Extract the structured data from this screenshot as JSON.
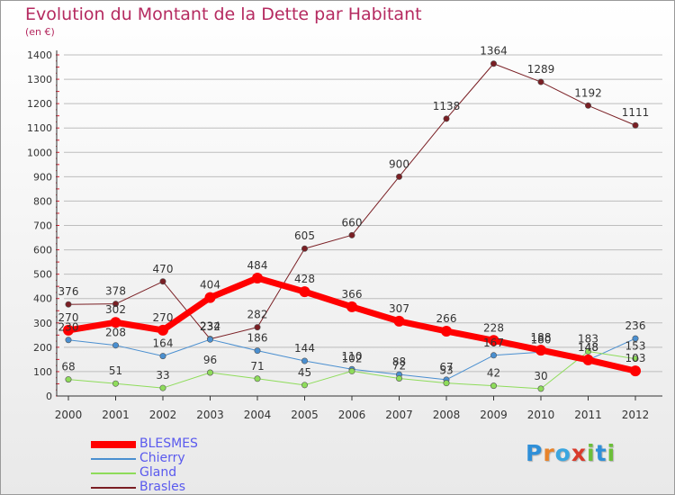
{
  "header": {
    "title": "Evolution du Montant de la Dette par Habitant",
    "subtitle": "(en €)"
  },
  "logo": {
    "text": "Proxiti",
    "colors": [
      "#2f8fd8",
      "#e8832a",
      "#3aa6e0",
      "#d93a2b",
      "#6cbf3a",
      "#2f8fd8",
      "#6cbf3a"
    ]
  },
  "chart_data": {
    "type": "line",
    "x": [
      "2000",
      "2001",
      "2002",
      "2003",
      "2004",
      "2005",
      "2006",
      "2007",
      "2008",
      "2009",
      "2010",
      "2011",
      "2012"
    ],
    "ylim": [
      0,
      1400
    ],
    "yticks": [
      0,
      100,
      200,
      300,
      400,
      500,
      600,
      700,
      800,
      900,
      1000,
      1100,
      1200,
      1300,
      1400
    ],
    "grid": "horizontal",
    "legend_position": "bottom-left",
    "series": [
      {
        "name": "Brasles",
        "color": "#7a1f24",
        "width": 1,
        "values": [
          376,
          378,
          470,
          234,
          282,
          605,
          660,
          900,
          1138,
          1364,
          1289,
          1192,
          1111
        ],
        "labels": [
          "376",
          "378",
          "470",
          "234",
          "282",
          "605",
          "660",
          "900",
          "1138",
          "1364",
          "1289",
          "1192",
          "1111"
        ]
      },
      {
        "name": "Chierry",
        "color": "#4a8fd0",
        "width": 1,
        "values": [
          230,
          208,
          164,
          232,
          186,
          144,
          110,
          88,
          67,
          167,
          180,
          148,
          236
        ],
        "labels": [
          "230",
          "208",
          "164",
          "232",
          "186",
          "144",
          "110",
          "88",
          "67",
          "167",
          "180",
          "148",
          "236"
        ]
      },
      {
        "name": "Gland",
        "color": "#8edc5a",
        "width": 1,
        "values": [
          68,
          51,
          33,
          96,
          71,
          45,
          102,
          72,
          53,
          42,
          30,
          183,
          153
        ],
        "labels": [
          "68",
          "51",
          "33",
          "96",
          "71",
          "45",
          "102",
          "72",
          "53",
          "42",
          "30",
          "183",
          "153"
        ]
      },
      {
        "name": "BLESMES",
        "color": "#ff0000",
        "width": 7,
        "values": [
          270,
          302,
          270,
          404,
          484,
          428,
          366,
          307,
          266,
          228,
          188,
          148,
          103
        ],
        "labels": [
          "270",
          "302",
          "270",
          "404",
          "484",
          "428",
          "366",
          "307",
          "266",
          "228",
          "188",
          "148",
          "103"
        ]
      }
    ],
    "legend": [
      {
        "name": "BLESMES",
        "color": "#ff0000",
        "width": 7
      },
      {
        "name": "Chierry",
        "color": "#4a8fd0",
        "width": 1
      },
      {
        "name": "Gland",
        "color": "#8edc5a",
        "width": 1
      },
      {
        "name": "Brasles",
        "color": "#7a1f24",
        "width": 1
      }
    ]
  }
}
